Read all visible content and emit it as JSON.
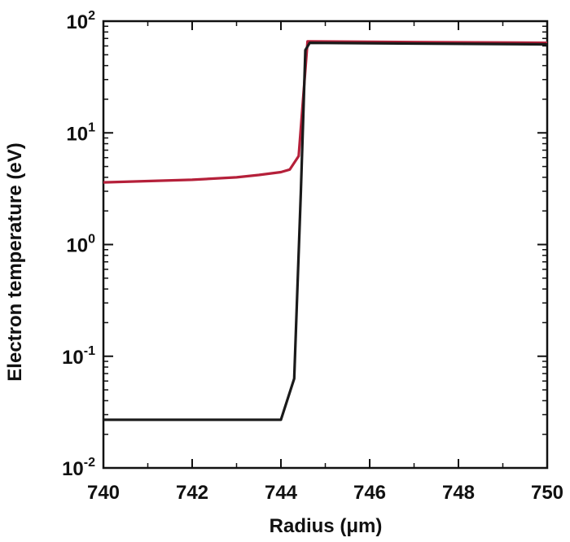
{
  "chart_data": {
    "type": "line",
    "xlabel": "Radius (μm)",
    "ylabel": "Electron temperature (eV)",
    "xlim": [
      740,
      750
    ],
    "ylim": [
      0.01,
      100
    ],
    "yscale": "log",
    "grid": false,
    "x_ticks": [
      740,
      742,
      744,
      746,
      748,
      750
    ],
    "x_tick_labels": [
      "740",
      "742",
      "744",
      "746",
      "748",
      "750"
    ],
    "y_ticks": [
      {
        "value": 0.01,
        "base": "10",
        "exp": "-2"
      },
      {
        "value": 0.1,
        "base": "10",
        "exp": "-1"
      },
      {
        "value": 1,
        "base": "10",
        "exp": "0"
      },
      {
        "value": 10,
        "base": "10",
        "exp": "1"
      },
      {
        "value": 100,
        "base": "10",
        "exp": "2"
      }
    ],
    "series": [
      {
        "color": "#b5203a",
        "points": [
          [
            740.0,
            3.6
          ],
          [
            741.0,
            3.7
          ],
          [
            742.0,
            3.8
          ],
          [
            743.0,
            4.0
          ],
          [
            743.5,
            4.2
          ],
          [
            744.0,
            4.45
          ],
          [
            744.2,
            4.7
          ],
          [
            744.4,
            6.2
          ],
          [
            744.6,
            66
          ],
          [
            747.0,
            65
          ],
          [
            750.0,
            64
          ]
        ]
      },
      {
        "color": "#1a1a1a",
        "points": [
          [
            740.0,
            0.027
          ],
          [
            742.0,
            0.027
          ],
          [
            744.0,
            0.027
          ],
          [
            744.3,
            0.063
          ],
          [
            744.45,
            3.0
          ],
          [
            744.55,
            55
          ],
          [
            744.65,
            64
          ],
          [
            747.0,
            63
          ],
          [
            750.0,
            62
          ]
        ]
      }
    ]
  }
}
